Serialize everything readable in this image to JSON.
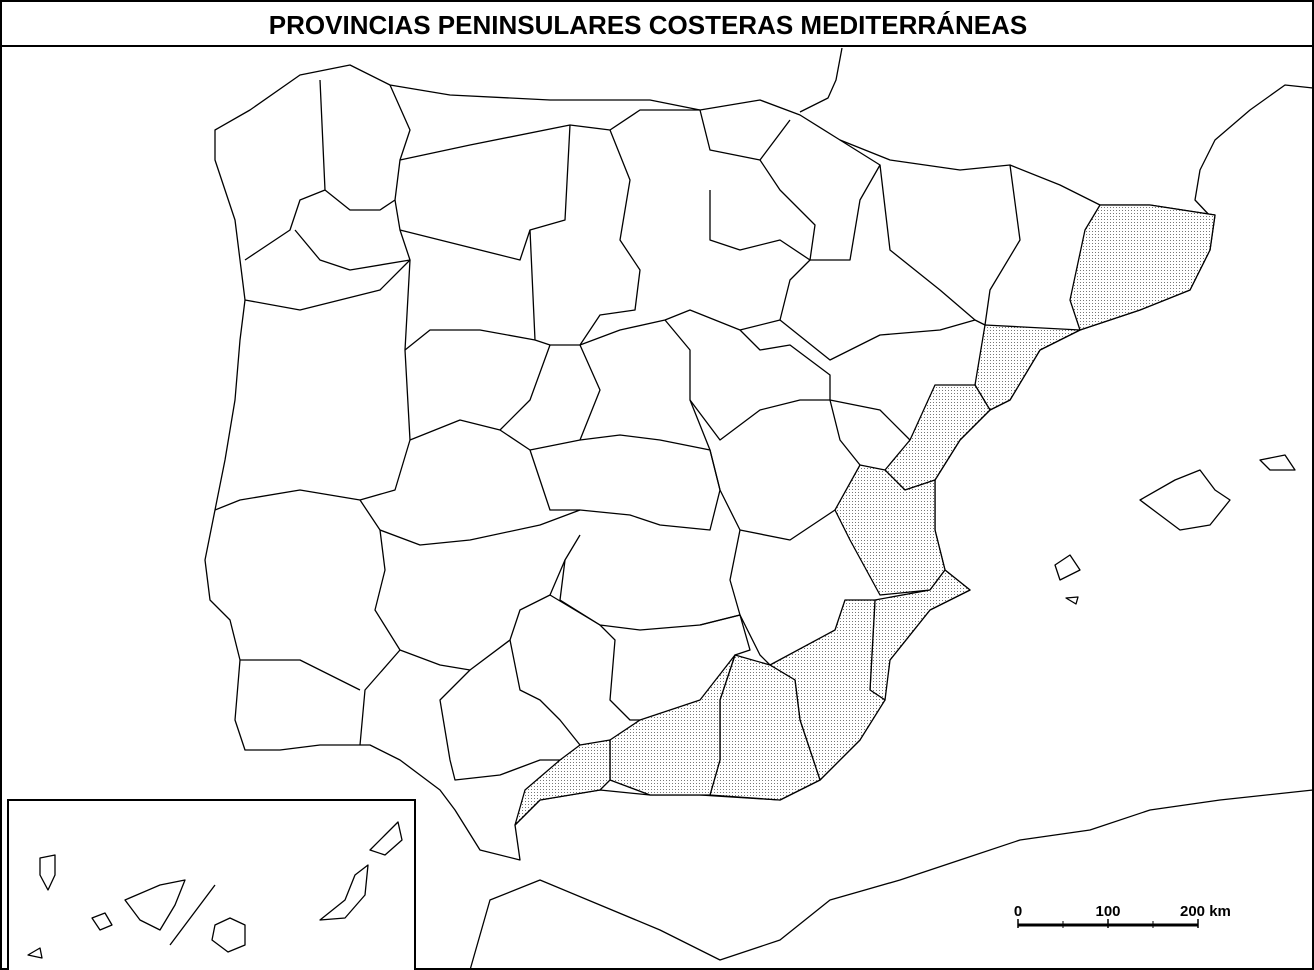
{
  "header": {
    "title": "PROVINCIAS PENINSULARES COSTERAS MEDITERRÁNEAS"
  },
  "scale": {
    "labels": [
      "0",
      "100",
      "200 km"
    ]
  }
}
